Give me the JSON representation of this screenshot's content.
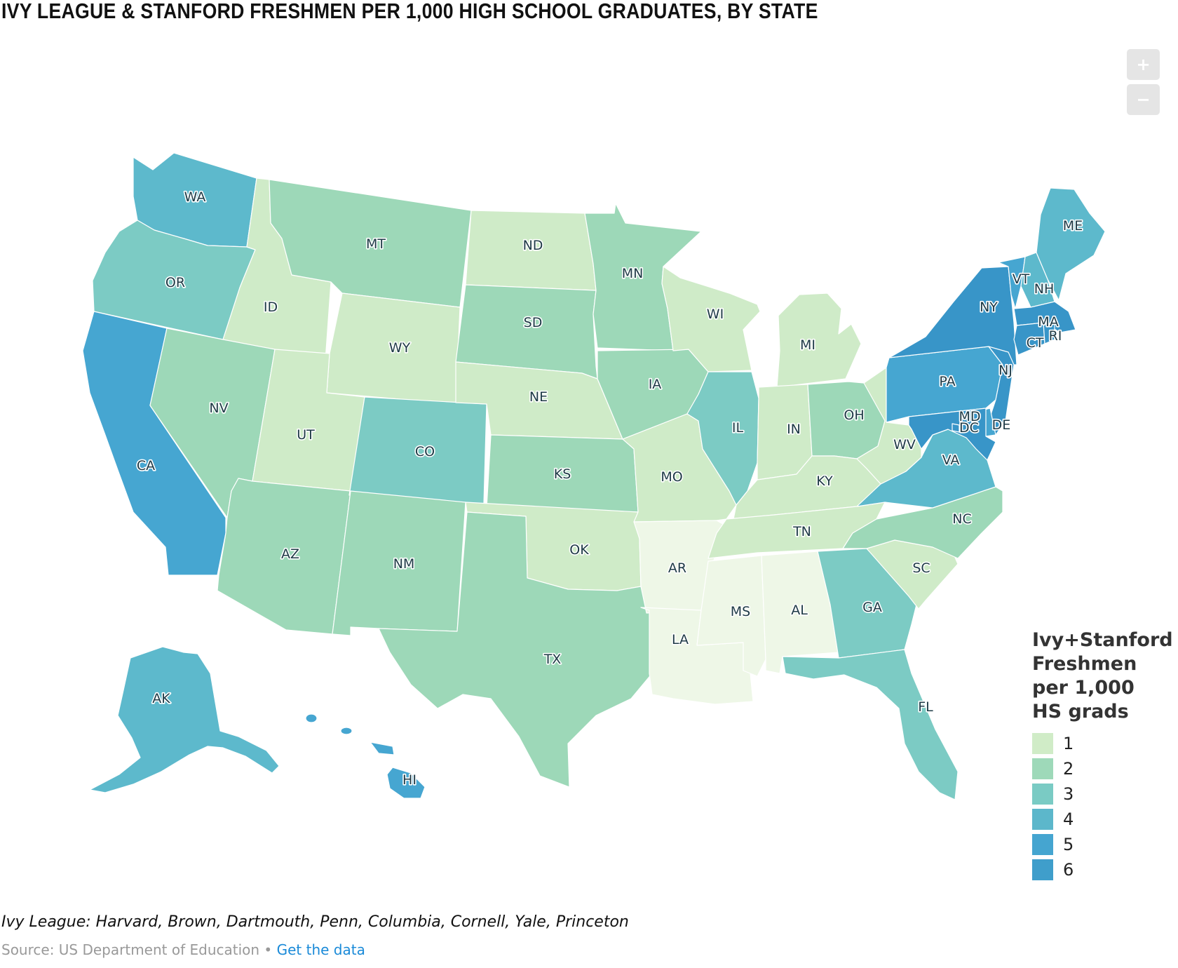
{
  "title": "IVY LEAGUE & STANFORD FRESHMEN PER 1,000 HIGH SCHOOL GRADUATES, BY STATE",
  "zoom": {
    "in_label": "+",
    "out_label": "−"
  },
  "legend": {
    "title_lines": [
      "Ivy+Stanford",
      "Freshmen",
      "per 1,000",
      "HS grads"
    ],
    "items": [
      {
        "label": "1",
        "color": "#d0ecc7"
      },
      {
        "label": "2",
        "color": "#9ed9b9"
      },
      {
        "label": "3",
        "color": "#7acbc4"
      },
      {
        "label": "4",
        "color": "#5cb7cb"
      },
      {
        "label": "5",
        "color": "#45a5d0"
      },
      {
        "label": "6",
        "color": "#3f9ecb"
      }
    ]
  },
  "colors": {
    "below1": "#eef7e7",
    "bucket1": "#cfebc8",
    "bucket2": "#9dd8b8",
    "bucket3": "#7ccbc4",
    "bucket4": "#5db9cc",
    "bucket5": "#46a6d1",
    "bucket6": "#3895c8"
  },
  "states": [
    {
      "code": "WA",
      "bucket": "bucket4"
    },
    {
      "code": "OR",
      "bucket": "bucket3"
    },
    {
      "code": "CA",
      "bucket": "bucket5"
    },
    {
      "code": "ID",
      "bucket": "bucket1"
    },
    {
      "code": "NV",
      "bucket": "bucket2"
    },
    {
      "code": "MT",
      "bucket": "bucket2"
    },
    {
      "code": "WY",
      "bucket": "bucket1"
    },
    {
      "code": "UT",
      "bucket": "bucket1"
    },
    {
      "code": "AZ",
      "bucket": "bucket2"
    },
    {
      "code": "CO",
      "bucket": "bucket3"
    },
    {
      "code": "NM",
      "bucket": "bucket2"
    },
    {
      "code": "ND",
      "bucket": "bucket1"
    },
    {
      "code": "SD",
      "bucket": "bucket2"
    },
    {
      "code": "NE",
      "bucket": "bucket1"
    },
    {
      "code": "KS",
      "bucket": "bucket2"
    },
    {
      "code": "OK",
      "bucket": "bucket1"
    },
    {
      "code": "TX",
      "bucket": "bucket2"
    },
    {
      "code": "MN",
      "bucket": "bucket2"
    },
    {
      "code": "IA",
      "bucket": "bucket2"
    },
    {
      "code": "MO",
      "bucket": "bucket1"
    },
    {
      "code": "AR",
      "bucket": "below1"
    },
    {
      "code": "LA",
      "bucket": "below1"
    },
    {
      "code": "WI",
      "bucket": "bucket1"
    },
    {
      "code": "IL",
      "bucket": "bucket3"
    },
    {
      "code": "MI",
      "bucket": "bucket1"
    },
    {
      "code": "IN",
      "bucket": "bucket1"
    },
    {
      "code": "OH",
      "bucket": "bucket2"
    },
    {
      "code": "KY",
      "bucket": "bucket1"
    },
    {
      "code": "TN",
      "bucket": "bucket1"
    },
    {
      "code": "MS",
      "bucket": "below1"
    },
    {
      "code": "AL",
      "bucket": "below1"
    },
    {
      "code": "GA",
      "bucket": "bucket3"
    },
    {
      "code": "FL",
      "bucket": "bucket3"
    },
    {
      "code": "SC",
      "bucket": "bucket1"
    },
    {
      "code": "NC",
      "bucket": "bucket2"
    },
    {
      "code": "VA",
      "bucket": "bucket4"
    },
    {
      "code": "WV",
      "bucket": "bucket1"
    },
    {
      "code": "PA",
      "bucket": "bucket5"
    },
    {
      "code": "NY",
      "bucket": "bucket6"
    },
    {
      "code": "NJ",
      "bucket": "bucket6"
    },
    {
      "code": "DE",
      "bucket": "bucket5"
    },
    {
      "code": "MD",
      "bucket": "bucket6"
    },
    {
      "code": "DC",
      "bucket": "bucket6"
    },
    {
      "code": "VT",
      "bucket": "bucket5"
    },
    {
      "code": "NH",
      "bucket": "bucket4"
    },
    {
      "code": "ME",
      "bucket": "bucket4"
    },
    {
      "code": "MA",
      "bucket": "bucket6"
    },
    {
      "code": "CT",
      "bucket": "bucket6"
    },
    {
      "code": "RI",
      "bucket": "bucket6"
    },
    {
      "code": "AK",
      "bucket": "bucket4"
    },
    {
      "code": "HI",
      "bucket": "bucket5"
    }
  ],
  "footnote": "Ivy League: Harvard, Brown, Dartmouth, Penn, Columbia, Cornell, Yale, Princeton",
  "source": {
    "text": "Source: US Department of Education",
    "separator": " • ",
    "link": "Get the data"
  }
}
